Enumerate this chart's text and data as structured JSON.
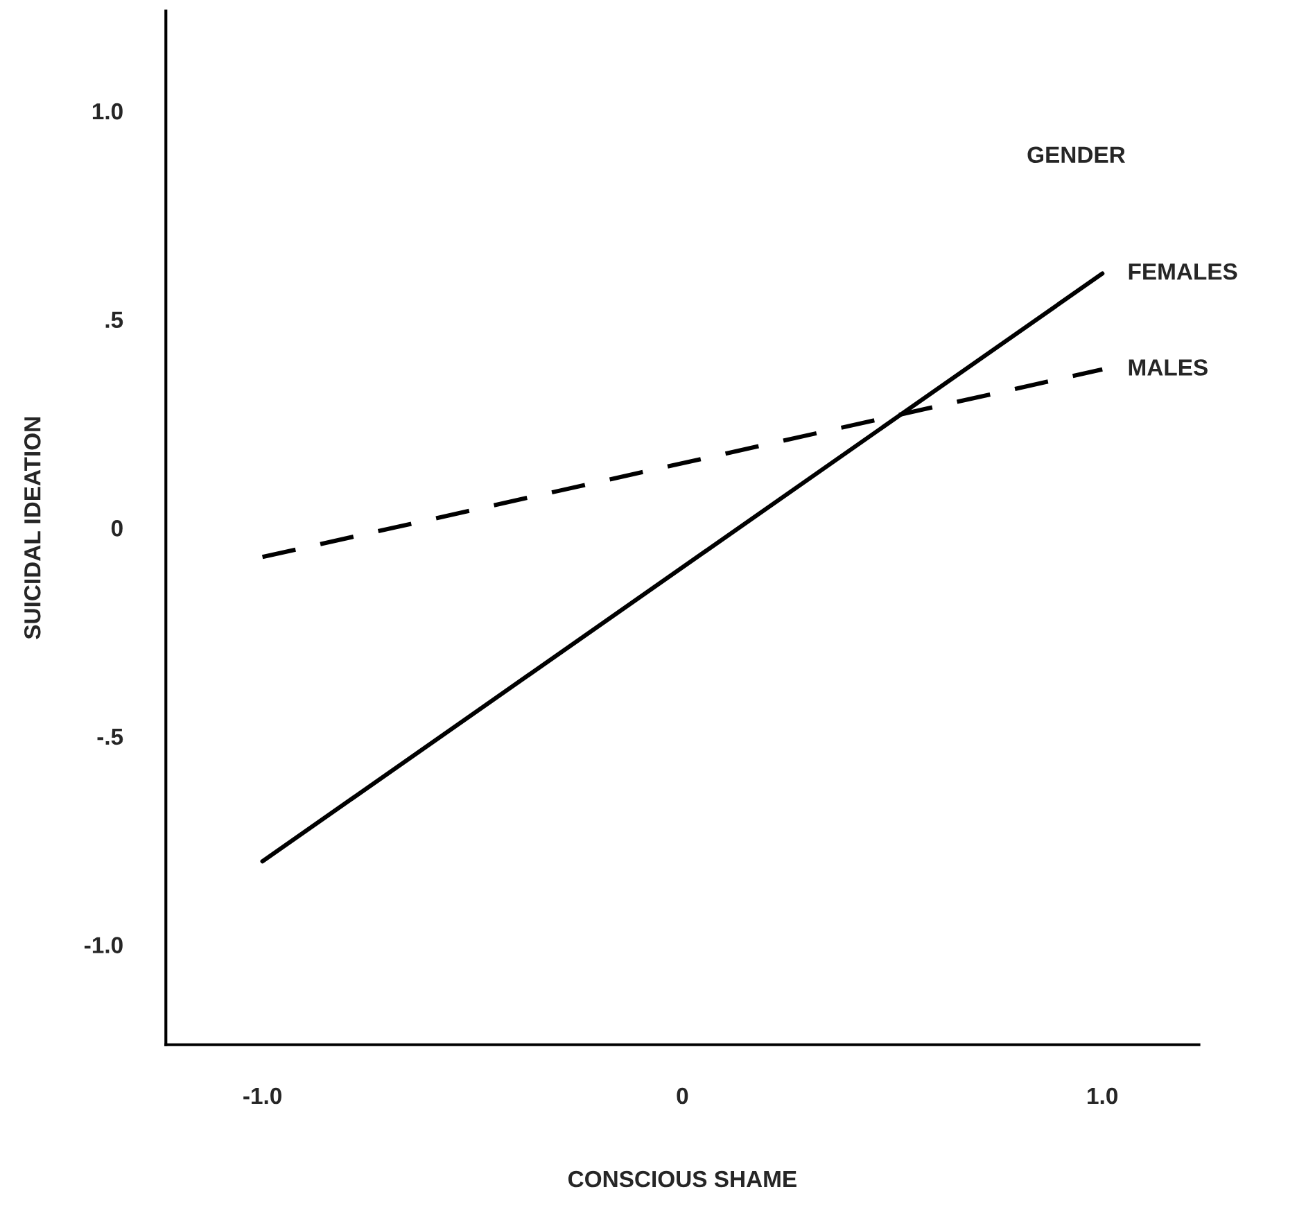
{
  "chart_data": {
    "type": "line",
    "xlabel": "CONSCIOUS SHAME",
    "ylabel": "SUICIDAL IDEATION",
    "legend_title": "GENDER",
    "x": [
      -1.0,
      1.0
    ],
    "series": [
      {
        "name": "FEMALES",
        "color": "#000000",
        "line_style": "solid",
        "values": [
          -0.8,
          0.61
        ]
      },
      {
        "name": "MALES",
        "color": "#000000",
        "line_style": "dashed",
        "values": [
          -0.07,
          0.38
        ]
      }
    ],
    "xlim": [
      -1.23,
      1.23
    ],
    "ylim": [
      -1.24,
      1.24
    ],
    "xticks": [
      {
        "value": -1.0,
        "label": "-1.0"
      },
      0,
      {
        "value": 1.0,
        "label": "1.0"
      }
    ],
    "yticks": [
      {
        "value": -1.0,
        "label": "-1.0"
      },
      {
        "value": -0.5,
        "label": "-.5"
      },
      0,
      {
        "value": 0.5,
        "label": ".5"
      },
      {
        "value": 1.0,
        "label": "1.0"
      }
    ],
    "grid": false,
    "legend": false,
    "marker": "none"
  }
}
